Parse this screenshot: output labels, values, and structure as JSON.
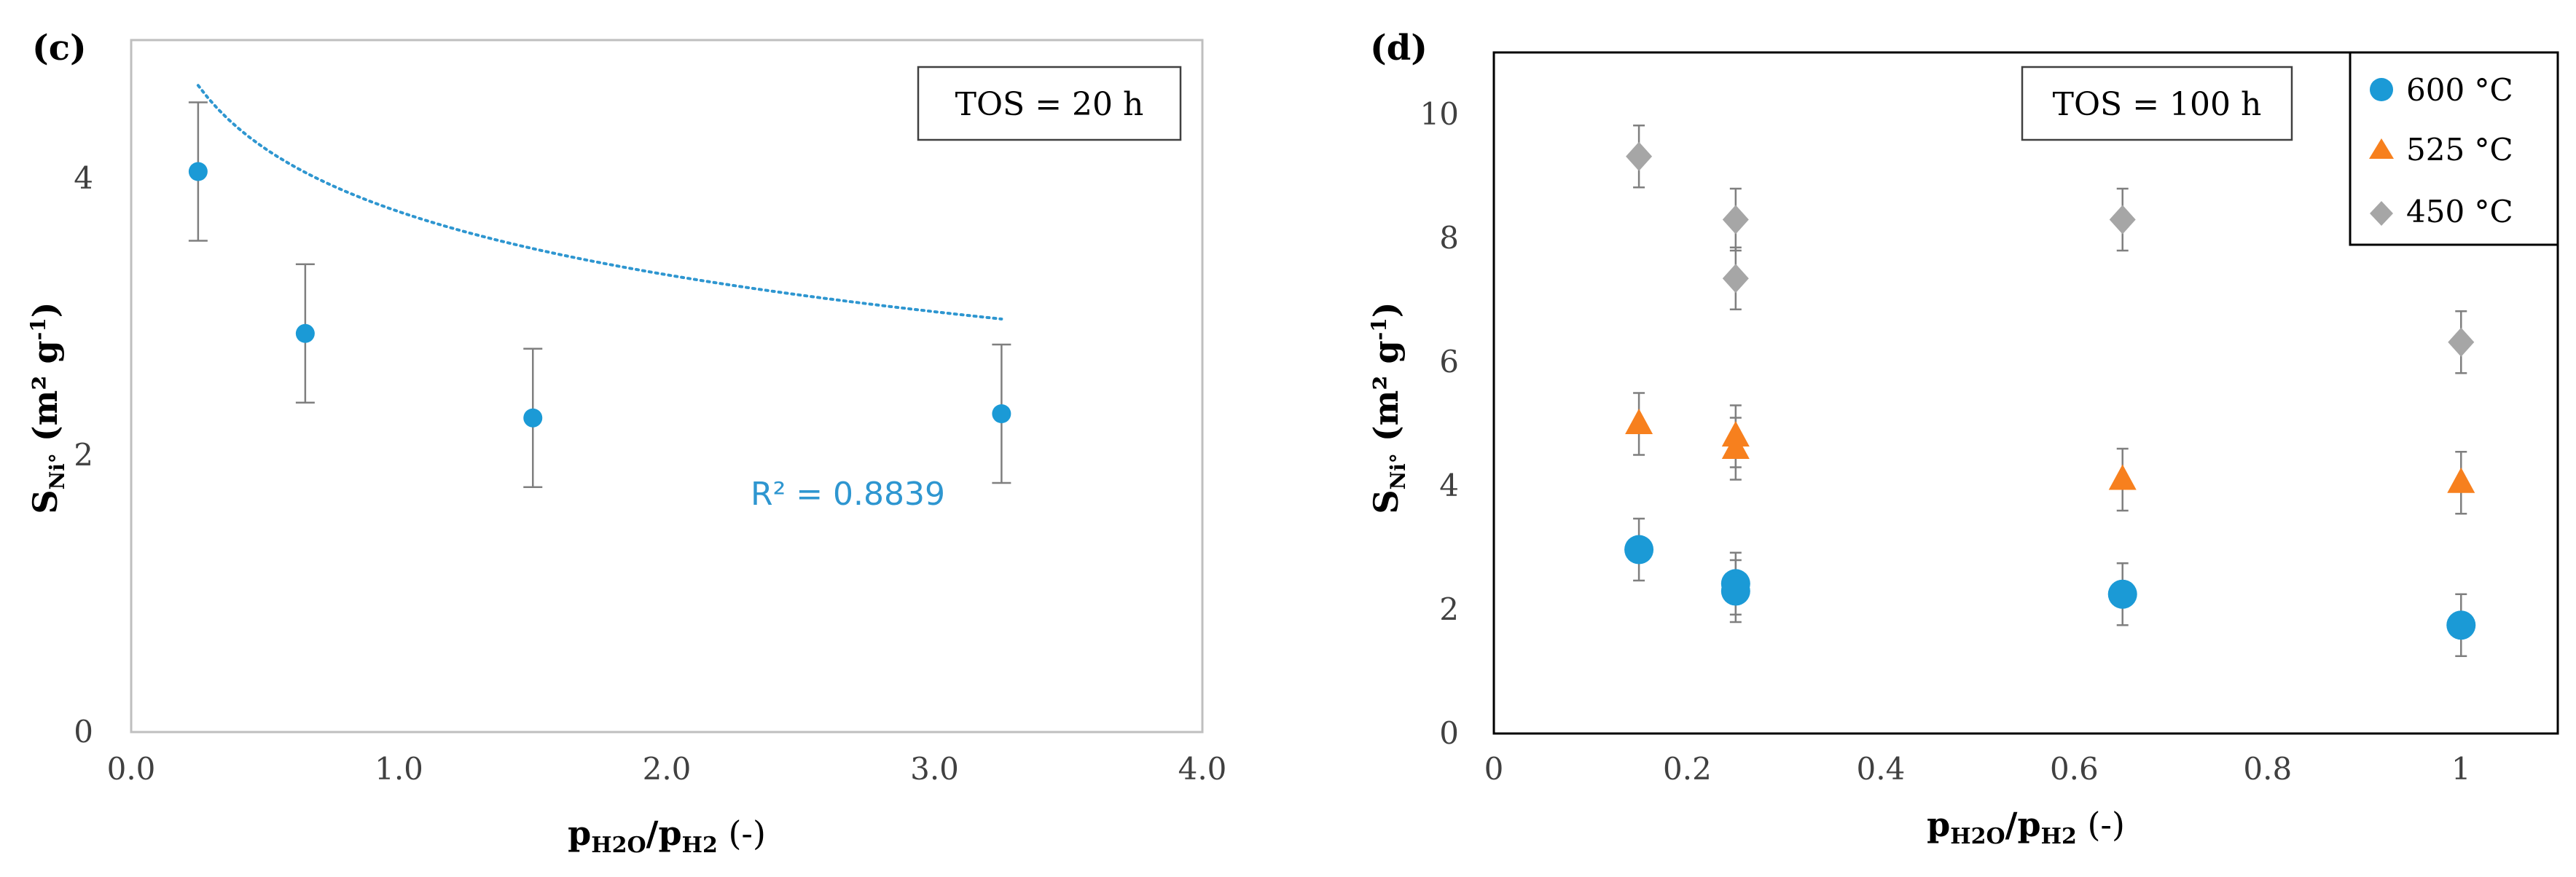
{
  "chart_data": [
    {
      "panel": "(c)",
      "type": "scatter",
      "xlim": [
        0.0,
        4.0
      ],
      "ylim": [
        0,
        5
      ],
      "xticks": [
        0.0,
        1.0,
        2.0,
        3.0,
        4.0
      ],
      "xtick_labels": [
        "0.0",
        "1.0",
        "2.0",
        "3.0",
        "4.0"
      ],
      "yticks": [
        0,
        2,
        4
      ],
      "ytick_labels": [
        "0",
        "2",
        "4"
      ],
      "xlabel": {
        "main": "p",
        "sub1": "H2O",
        "mid": "/p",
        "sub2": "H2",
        "tail": " (-)"
      },
      "ylabel": {
        "main": "S",
        "sub": "Ni°",
        "unit": " (m² g",
        "sup": "-1",
        "close": ")"
      },
      "annotation_box": "TOS = 20 h",
      "series": [
        {
          "name": "S_Ni",
          "color": "#1b9ad6",
          "x": [
            0.25,
            0.65,
            1.5,
            3.25
          ],
          "y": [
            4.05,
            2.88,
            2.27,
            2.3
          ],
          "err": [
            0.5,
            0.5,
            0.5,
            0.5
          ]
        }
      ],
      "trendline": {
        "type": "logarithmic",
        "x_range": [
          0.25,
          3.25
        ],
        "a": 3.76,
        "b": -0.658,
        "color": "#2e96d0",
        "label": "R² = 0.8839"
      }
    },
    {
      "panel": "(d)",
      "type": "scatter",
      "xlim": [
        0,
        1.1
      ],
      "ylim": [
        0,
        11
      ],
      "xticks": [
        0,
        0.2,
        0.4,
        0.6,
        0.8,
        1
      ],
      "xtick_labels": [
        "0",
        "0.2",
        "0.4",
        "0.6",
        "0.8",
        "1"
      ],
      "yticks": [
        0,
        2,
        4,
        6,
        8,
        10
      ],
      "ytick_labels": [
        "0",
        "2",
        "4",
        "6",
        "8",
        "10"
      ],
      "xlabel": {
        "main": "p",
        "sub1": "H2O",
        "mid": "/p",
        "sub2": "H2",
        "tail": " (-)"
      },
      "ylabel": {
        "main": "S",
        "sub": "Ni°",
        "unit": " (m² g",
        "sup": "-1",
        "close": ")"
      },
      "annotation_box": "TOS = 100 h",
      "legend_position": "top-right",
      "series": [
        {
          "name": "600 °C",
          "marker": "circle",
          "color": "#1b9ad6",
          "x": [
            0.15,
            0.25,
            0.25,
            0.65,
            1.0
          ],
          "y": [
            2.97,
            2.42,
            2.3,
            2.25,
            1.75
          ],
          "err": [
            0.5,
            0.5,
            0.5,
            0.5,
            0.5
          ]
        },
        {
          "name": "525 °C",
          "marker": "triangle",
          "color": "#f7801e",
          "x": [
            0.15,
            0.25,
            0.25,
            0.65,
            1.0
          ],
          "y": [
            5.0,
            4.8,
            4.6,
            4.1,
            4.05
          ],
          "err": [
            0.5,
            0.5,
            0.5,
            0.5,
            0.5
          ]
        },
        {
          "name": "450 °C",
          "marker": "diamond",
          "color": "#a6a6a6",
          "x": [
            0.15,
            0.25,
            0.25,
            0.65,
            1.0
          ],
          "y": [
            9.32,
            8.3,
            7.35,
            8.3,
            6.32
          ],
          "err": [
            0.5,
            0.5,
            0.5,
            0.5,
            0.5
          ]
        }
      ]
    }
  ]
}
